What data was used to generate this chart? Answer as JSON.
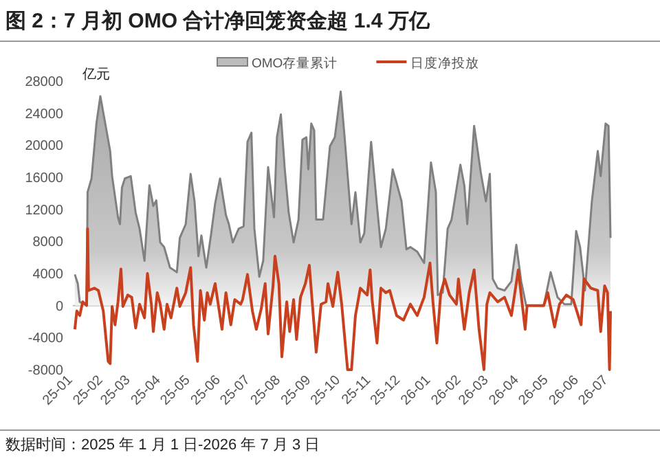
{
  "chart_data": {
    "type": "line",
    "title": "图 2：7 月初 OMO 合计净回笼资金超 1.4 万亿",
    "ylabel": "亿元",
    "annotations": [
      "数据时间：2025 年 1 月 1 日-2026 年 7 月 3 日"
    ],
    "legend": "top",
    "grid": false,
    "ref_lines": [
      {
        "axis": "y",
        "value": 0,
        "color": "#bbbbbb"
      }
    ],
    "xlim": [
      "2025-01-01",
      "2026-07-03"
    ],
    "xticks": [
      {
        "value": "2025-01-01",
        "label": "25-01"
      },
      {
        "value": "2025-02-01",
        "label": "25-02"
      },
      {
        "value": "2025-03-01",
        "label": "25-03"
      },
      {
        "value": "2025-04-01",
        "label": "25-04"
      },
      {
        "value": "2025-05-01",
        "label": "25-05"
      },
      {
        "value": "2025-06-01",
        "label": "25-06"
      },
      {
        "value": "2025-07-01",
        "label": "25-07"
      },
      {
        "value": "2025-08-01",
        "label": "25-08"
      },
      {
        "value": "2025-09-01",
        "label": "25-09"
      },
      {
        "value": "2025-10-01",
        "label": "25-10"
      },
      {
        "value": "2025-11-01",
        "label": "25-11"
      },
      {
        "value": "2025-12-01",
        "label": "25-12"
      },
      {
        "value": "2026-01-01",
        "label": "26-01"
      },
      {
        "value": "2026-02-01",
        "label": "26-02"
      },
      {
        "value": "2026-03-01",
        "label": "26-03"
      },
      {
        "value": "2026-04-01",
        "label": "26-04"
      },
      {
        "value": "2026-05-01",
        "label": "26-05"
      },
      {
        "value": "2026-06-01",
        "label": "26-06"
      },
      {
        "value": "2026-07-01",
        "label": "26-07"
      }
    ],
    "ylim": [
      -8000,
      28000
    ],
    "yticks": [
      -8000,
      -4000,
      0,
      4000,
      8000,
      12000,
      16000,
      20000,
      24000,
      28000
    ],
    "series": [
      {
        "name": "OMO存量累计",
        "type": "area",
        "color": "#808080",
        "x": [
          "2025-01-03",
          "2025-01-06",
          "2025-01-08",
          "2025-01-13",
          "2025-01-15",
          "2025-01-16",
          "2025-01-20",
          "2025-01-25",
          "2025-01-29",
          "2025-02-03",
          "2025-02-08",
          "2025-02-10",
          "2025-02-16",
          "2025-02-18",
          "2025-02-20",
          "2025-02-23",
          "2025-03-01",
          "2025-03-06",
          "2025-03-10",
          "2025-03-15",
          "2025-03-20",
          "2025-03-24",
          "2025-03-27",
          "2025-03-31",
          "2025-04-04",
          "2025-04-10",
          "2025-04-17",
          "2025-04-20",
          "2025-04-26",
          "2025-05-01",
          "2025-05-05",
          "2025-05-09",
          "2025-05-12",
          "2025-05-17",
          "2025-05-22",
          "2025-05-26",
          "2025-05-31",
          "2025-06-06",
          "2025-06-09",
          "2025-06-13",
          "2025-06-19",
          "2025-06-24",
          "2025-06-28",
          "2025-07-02",
          "2025-07-05",
          "2025-07-10",
          "2025-07-14",
          "2025-07-19",
          "2025-07-25",
          "2025-07-28",
          "2025-08-01",
          "2025-08-05",
          "2025-08-09",
          "2025-08-14",
          "2025-08-19",
          "2025-08-23",
          "2025-08-27",
          "2025-08-29",
          "2025-09-01",
          "2025-09-04",
          "2025-09-06",
          "2025-09-13",
          "2025-09-20",
          "2025-09-25",
          "2025-10-01",
          "2025-10-05",
          "2025-10-12",
          "2025-10-16",
          "2025-10-21",
          "2025-10-25",
          "2025-11-01",
          "2025-11-07",
          "2025-11-11",
          "2025-11-16",
          "2025-11-23",
          "2025-11-27",
          "2025-12-02",
          "2025-12-07",
          "2025-12-11",
          "2025-12-18",
          "2025-12-25",
          "2026-01-01",
          "2026-01-06",
          "2026-01-08",
          "2026-01-13",
          "2026-01-18",
          "2026-01-22",
          "2026-01-31",
          "2026-02-04",
          "2026-02-07",
          "2026-02-14",
          "2026-02-21",
          "2026-02-26",
          "2026-03-02",
          "2026-03-05",
          "2026-03-10",
          "2026-03-17",
          "2026-03-24",
          "2026-03-29",
          "2026-04-03",
          "2026-04-08",
          "2026-04-26",
          "2026-05-03",
          "2026-05-10",
          "2026-05-17",
          "2026-05-24",
          "2026-05-29",
          "2026-06-02",
          "2026-06-07",
          "2026-06-14",
          "2026-06-20",
          "2026-06-23",
          "2026-06-28",
          "2026-07-01",
          "2026-07-03"
        ],
        "values": [
          3880,
          2740,
          460,
          170,
          170,
          14140,
          15850,
          22700,
          26120,
          22700,
          19280,
          16140,
          11010,
          10150,
          14710,
          15850,
          16140,
          11580,
          9580,
          5590,
          15000,
          12430,
          13120,
          7870,
          7300,
          4730,
          4160,
          8440,
          10150,
          16420,
          13000,
          6160,
          8730,
          4730,
          9010,
          12720,
          15850,
          11290,
          10150,
          7870,
          9580,
          9870,
          20420,
          21560,
          9580,
          3590,
          5590,
          17270,
          11010,
          20990,
          23840,
          16990,
          11580,
          7870,
          10720,
          20700,
          20990,
          16990,
          22700,
          21840,
          10720,
          10720,
          19850,
          20990,
          26690,
          20990,
          10150,
          14140,
          7870,
          9010,
          20420,
          12430,
          7300,
          9580,
          16990,
          15280,
          13000,
          7010,
          7300,
          6730,
          5300,
          17850,
          14140,
          1310,
          1600,
          9580,
          10720,
          17560,
          15000,
          10150,
          22410,
          16420,
          13000,
          16420,
          3310,
          2170,
          1880,
          3020,
          7580,
          3020,
          0,
          0,
          4160,
          1030,
          170,
          170,
          9300,
          7300,
          1880,
          13000,
          19280,
          16140,
          22700,
          22410,
          8440
        ]
      },
      {
        "name": "日度净投放",
        "type": "line",
        "color": "#c8401e",
        "x": [
          "2025-01-03",
          "2025-01-05",
          "2025-01-08",
          "2025-01-11",
          "2025-01-15",
          "2025-01-16",
          "2025-01-17",
          "2025-01-23",
          "2025-01-27",
          "2025-02-01",
          "2025-02-06",
          "2025-02-08",
          "2025-02-10",
          "2025-02-13",
          "2025-02-16",
          "2025-02-19",
          "2025-02-21",
          "2025-02-26",
          "2025-03-02",
          "2025-03-06",
          "2025-03-10",
          "2025-03-15",
          "2025-03-18",
          "2025-03-22",
          "2025-03-24",
          "2025-03-28",
          "2025-03-31",
          "2025-04-04",
          "2025-04-07",
          "2025-04-11",
          "2025-04-17",
          "2025-04-20",
          "2025-04-26",
          "2025-05-01",
          "2025-05-04",
          "2025-05-08",
          "2025-05-11",
          "2025-05-15",
          "2025-05-18",
          "2025-05-21",
          "2025-05-26",
          "2025-06-02",
          "2025-06-06",
          "2025-06-11",
          "2025-06-15",
          "2025-06-21",
          "2025-06-23",
          "2025-06-28",
          "2025-07-03",
          "2025-07-07",
          "2025-07-12",
          "2025-07-16",
          "2025-07-19",
          "2025-07-24",
          "2025-07-26",
          "2025-07-30",
          "2025-08-02",
          "2025-08-07",
          "2025-08-10",
          "2025-08-14",
          "2025-08-17",
          "2025-08-21",
          "2025-08-26",
          "2025-08-30",
          "2025-09-06",
          "2025-09-11",
          "2025-09-16",
          "2025-09-18",
          "2025-09-23",
          "2025-09-28",
          "2025-10-02",
          "2025-10-08",
          "2025-10-12",
          "2025-10-16",
          "2025-10-21",
          "2025-10-28",
          "2025-10-31",
          "2025-11-02",
          "2025-11-07",
          "2025-11-11",
          "2025-11-16",
          "2025-11-20",
          "2025-11-27",
          "2025-12-04",
          "2025-12-11",
          "2025-12-18",
          "2025-12-25",
          "2025-12-31",
          "2026-01-03",
          "2026-01-07",
          "2026-01-11",
          "2026-01-15",
          "2026-01-20",
          "2026-01-27",
          "2026-01-29",
          "2026-02-04",
          "2026-02-09",
          "2026-02-14",
          "2026-02-19",
          "2026-02-24",
          "2026-02-27",
          "2026-03-02",
          "2026-03-10",
          "2026-03-17",
          "2026-03-24",
          "2026-03-31",
          "2026-04-07",
          "2026-04-09",
          "2026-04-26",
          "2026-04-30",
          "2026-05-07",
          "2026-05-12",
          "2026-05-19",
          "2026-05-26",
          "2026-06-03",
          "2026-06-06",
          "2026-06-13",
          "2026-06-20",
          "2026-06-23",
          "2026-06-27",
          "2026-06-30",
          "2026-07-02",
          "2026-07-03"
        ],
        "values": [
          -2970,
          -680,
          -1250,
          460,
          0,
          9580,
          1880,
          2170,
          1880,
          -680,
          -6960,
          -7240,
          -110,
          -2400,
          460,
          4560,
          -110,
          1310,
          1030,
          -2800,
          170,
          -1540,
          3990,
          170,
          -3250,
          1600,
          170,
          -2970,
          170,
          -1540,
          2170,
          -110,
          1600,
          4730,
          -2400,
          -6960,
          1880,
          -1820,
          1600,
          170,
          2740,
          -2970,
          1600,
          -2400,
          740,
          170,
          740,
          3880,
          -680,
          -2970,
          -400,
          2740,
          -3540,
          2450,
          6160,
          2740,
          -6390,
          460,
          -3250,
          740,
          -4220,
          1030,
          2740,
          5020,
          -5820,
          170,
          460,
          2740,
          -110,
          4160,
          170,
          -8000,
          -8000,
          -1250,
          2170,
          1310,
          4450,
          740,
          -4680,
          2170,
          1600,
          1880,
          -1250,
          -1820,
          170,
          -1250,
          1030,
          5300,
          460,
          -4680,
          1600,
          3310,
          1310,
          170,
          3310,
          -2970,
          1600,
          4450,
          -2970,
          -8000,
          170,
          1600,
          460,
          1030,
          -1250,
          4450,
          -2970,
          0,
          0,
          1600,
          -2680,
          170,
          1310,
          740,
          -2400,
          3310,
          2170,
          1880,
          -3250,
          2450,
          1600,
          -8000,
          -680
        ]
      }
    ]
  }
}
